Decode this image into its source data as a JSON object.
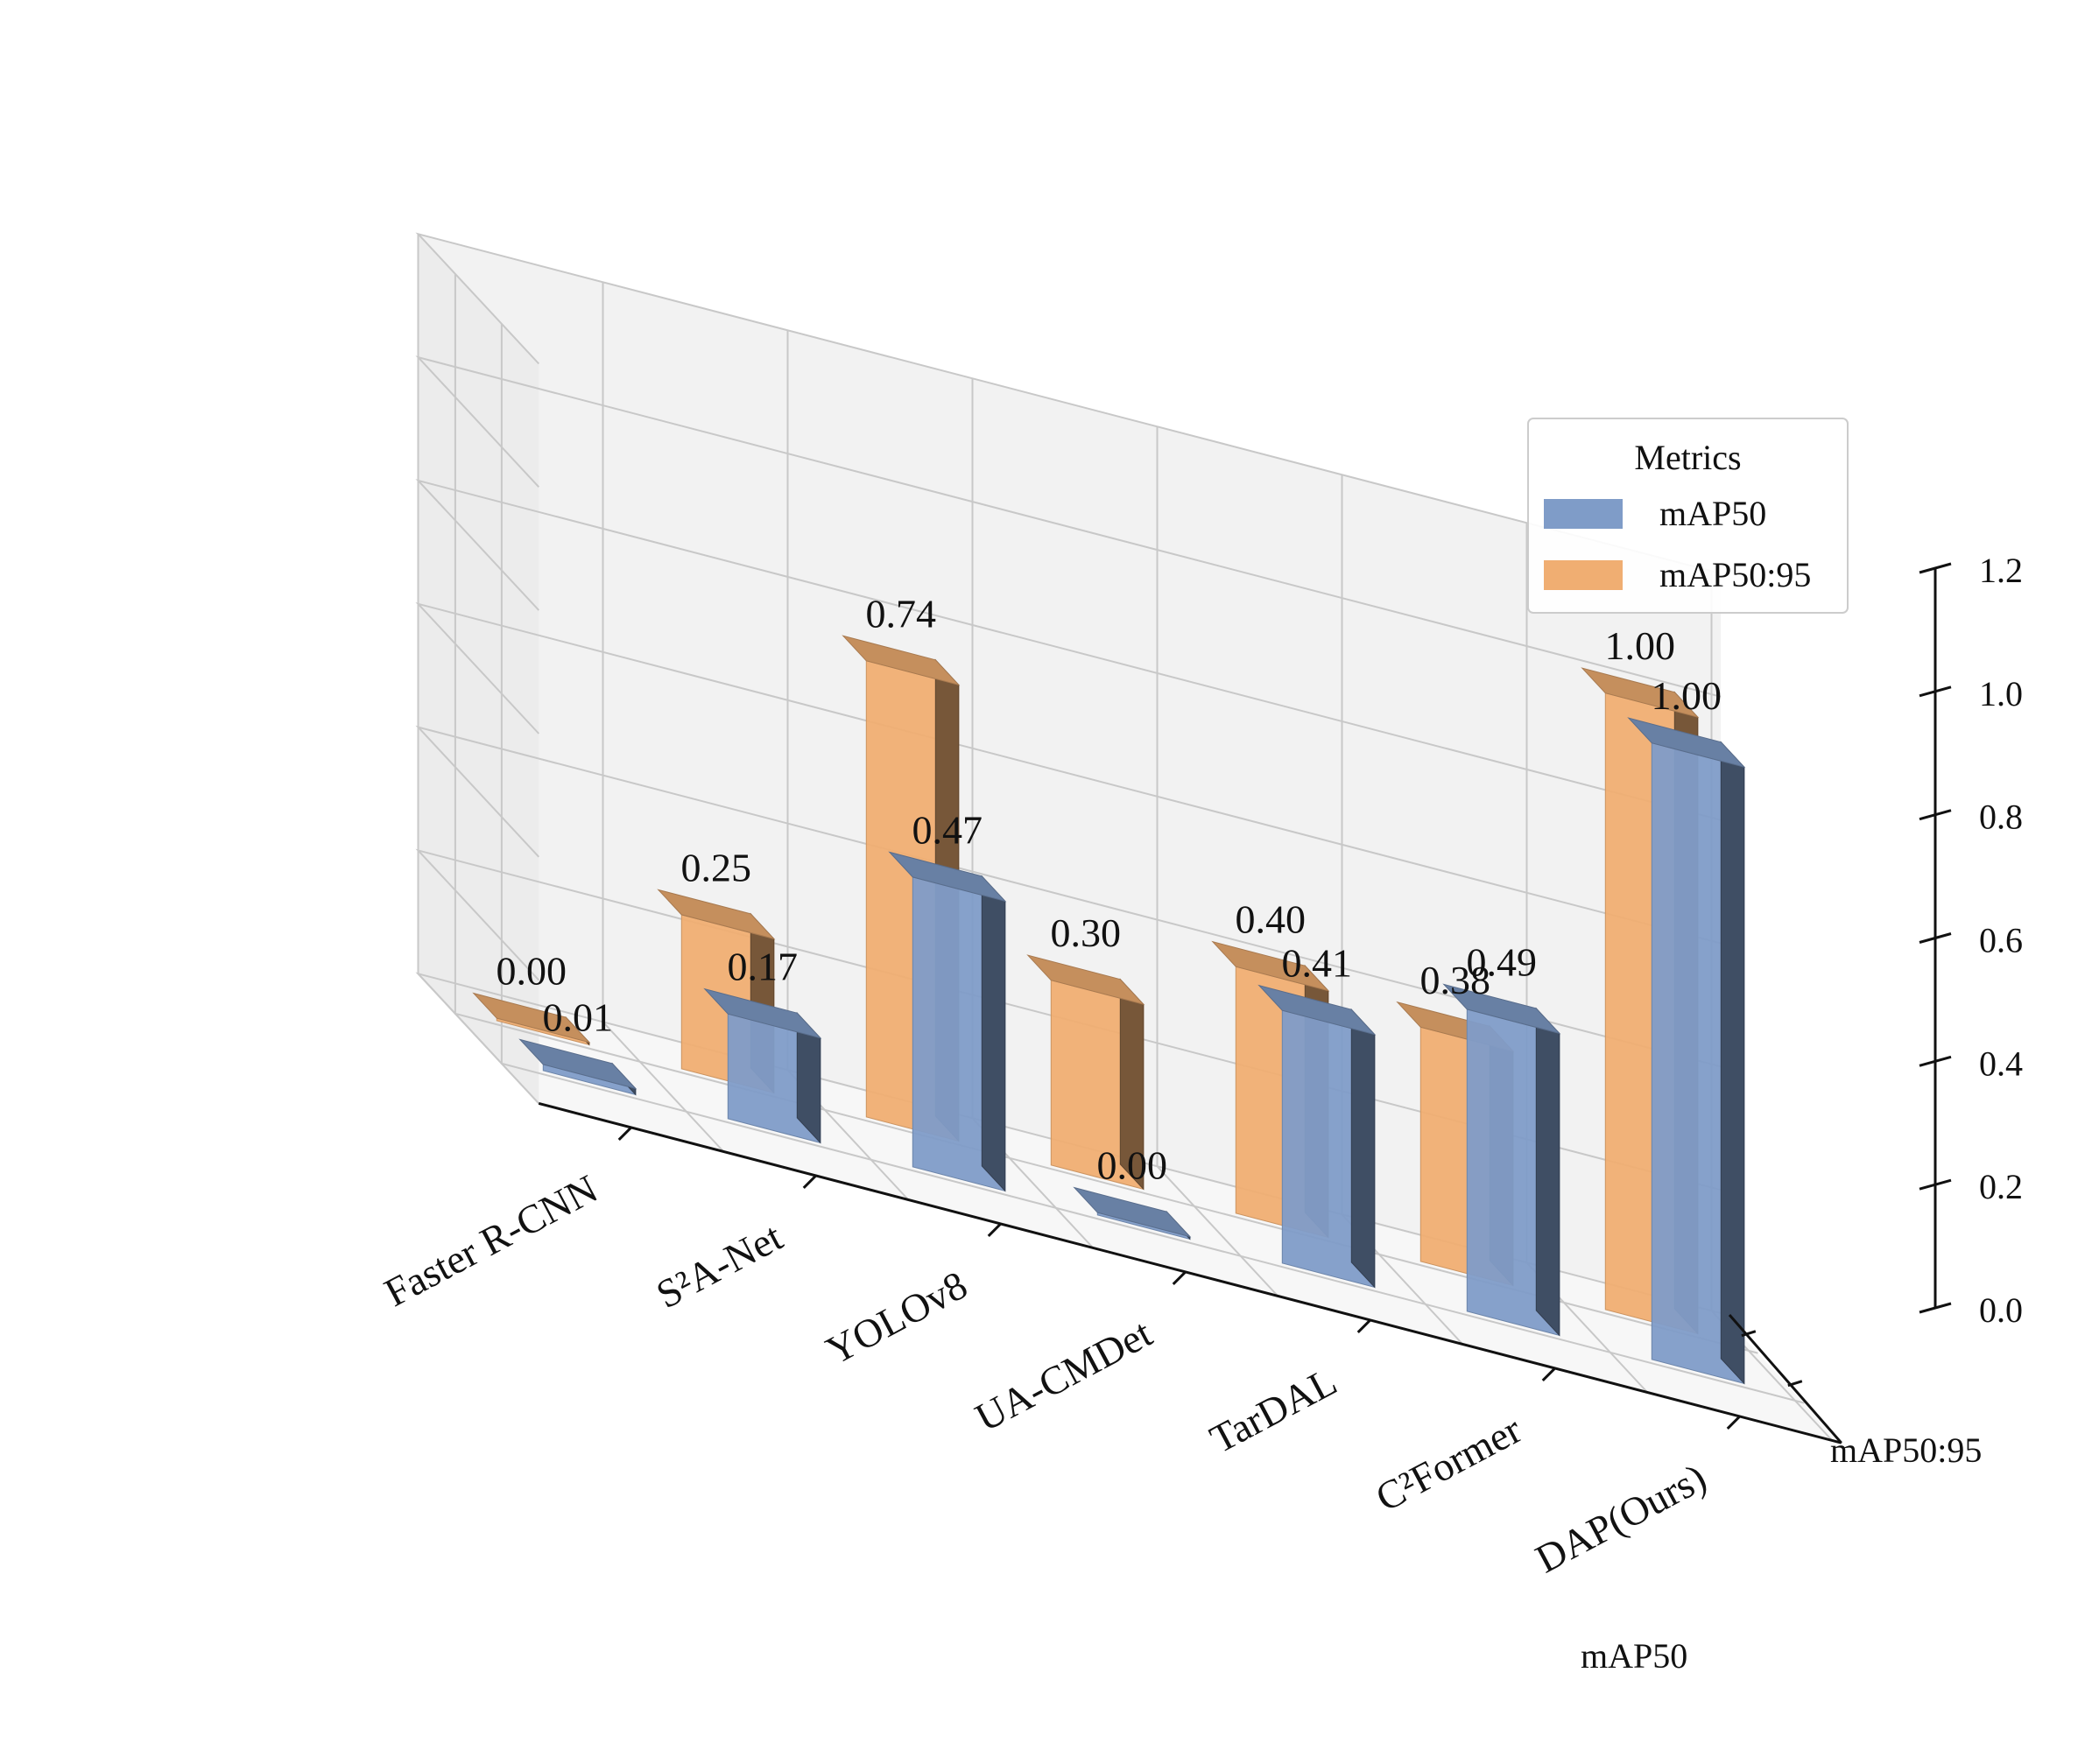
{
  "chart_data": {
    "type": "bar",
    "projection": "3d",
    "categories": [
      "DAP(Ours)",
      "C²Former",
      "TarDAL",
      "UA-CMDet",
      "YOLOv8",
      "S²A-Net",
      "Faster R-CNN"
    ],
    "series": [
      {
        "name": "mAP50",
        "values": [
          1.0,
          0.49,
          0.41,
          0.0,
          0.47,
          0.17,
          0.01
        ],
        "labels": [
          "1.00",
          "0.49",
          "0.41",
          "0.00",
          "0.47",
          "0.17",
          "0.01"
        ]
      },
      {
        "name": "mAP50:95",
        "values": [
          1.0,
          0.38,
          0.4,
          0.3,
          0.74,
          0.25,
          0.0
        ],
        "labels": [
          "1.00",
          "0.38",
          "0.40",
          "0.30",
          "0.74",
          "0.25",
          "0.00"
        ]
      }
    ],
    "depth_axis_labels": [
      "mAP50",
      "mAP50:95"
    ],
    "zlim": [
      0.0,
      1.2
    ],
    "z_ticks": [
      "0.0",
      "0.2",
      "0.4",
      "0.6",
      "0.8",
      "1.0",
      "1.2"
    ],
    "legend": {
      "title": "Metrics",
      "placement": "right"
    },
    "grid": true,
    "colors": {
      "mAP50": "#7f9cc8",
      "mAP50:95": "#f0ae72"
    }
  }
}
